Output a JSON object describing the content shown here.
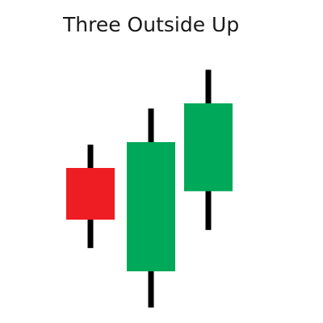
{
  "chart_data": {
    "type": "candlestick",
    "title": "Three Outside Up",
    "candles": [
      {
        "open": 7.0,
        "close": 5.0,
        "high": 7.9,
        "low": 3.9
      },
      {
        "open": 3.0,
        "close": 8.0,
        "high": 9.3,
        "low": 1.6
      },
      {
        "open": 6.1,
        "close": 9.5,
        "high": 10.8,
        "low": 4.6
      }
    ],
    "ylim": [
      1.0,
      11.0
    ],
    "colors": {
      "bullish": "#00a859",
      "bearish": "#ee1d23",
      "wick": "#000000"
    },
    "grid": false
  }
}
